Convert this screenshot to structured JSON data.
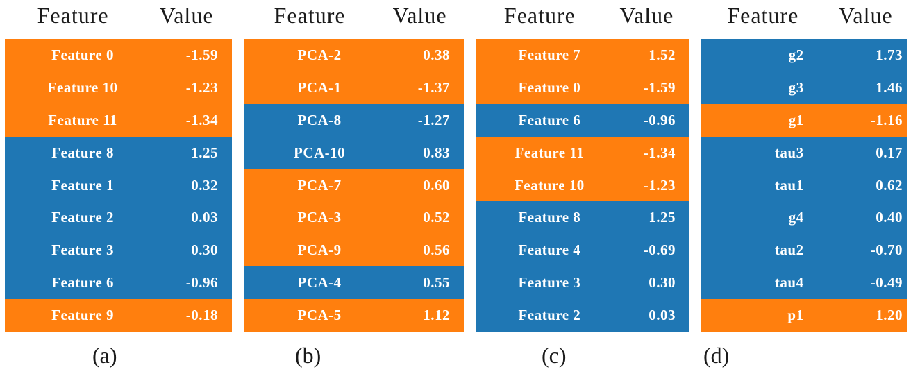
{
  "colors": {
    "row_orange": "#ff7f0e",
    "row_blue": "#1f77b4",
    "header_text": "#1a1a1a",
    "row_text": "#ffffff",
    "background": "#ffffff"
  },
  "chart_data": [
    {
      "type": "table",
      "label": "(a)",
      "columns": [
        "Feature",
        "Value"
      ],
      "rows": [
        {
          "feature": "Feature 0",
          "value": "-1.59",
          "color": "orange"
        },
        {
          "feature": "Feature 10",
          "value": "-1.23",
          "color": "orange"
        },
        {
          "feature": "Feature 11",
          "value": "-1.34",
          "color": "orange"
        },
        {
          "feature": "Feature 8",
          "value": "1.25",
          "color": "blue"
        },
        {
          "feature": "Feature 1",
          "value": "0.32",
          "color": "blue"
        },
        {
          "feature": "Feature 2",
          "value": "0.03",
          "color": "blue"
        },
        {
          "feature": "Feature 3",
          "value": "0.30",
          "color": "blue"
        },
        {
          "feature": "Feature 6",
          "value": "-0.96",
          "color": "blue"
        },
        {
          "feature": "Feature 9",
          "value": "-0.18",
          "color": "orange"
        }
      ]
    },
    {
      "type": "table",
      "label": "(b)",
      "columns": [
        "Feature",
        "Value"
      ],
      "rows": [
        {
          "feature": "PCA-2",
          "value": "0.38",
          "color": "orange"
        },
        {
          "feature": "PCA-1",
          "value": "-1.37",
          "color": "orange"
        },
        {
          "feature": "PCA-8",
          "value": "-1.27",
          "color": "blue"
        },
        {
          "feature": "PCA-10",
          "value": "0.83",
          "color": "blue"
        },
        {
          "feature": "PCA-7",
          "value": "0.60",
          "color": "orange"
        },
        {
          "feature": "PCA-3",
          "value": "0.52",
          "color": "orange"
        },
        {
          "feature": "PCA-9",
          "value": "0.56",
          "color": "orange"
        },
        {
          "feature": "PCA-4",
          "value": "0.55",
          "color": "blue"
        },
        {
          "feature": "PCA-5",
          "value": "1.12",
          "color": "orange"
        }
      ]
    },
    {
      "type": "table",
      "label": "(c)",
      "columns": [
        "Feature",
        "Value"
      ],
      "rows": [
        {
          "feature": "Feature 7",
          "value": "1.52",
          "color": "orange"
        },
        {
          "feature": "Feature 0",
          "value": "-1.59",
          "color": "orange"
        },
        {
          "feature": "Feature 6",
          "value": "-0.96",
          "color": "blue"
        },
        {
          "feature": "Feature 11",
          "value": "-1.34",
          "color": "orange"
        },
        {
          "feature": "Feature 10",
          "value": "-1.23",
          "color": "orange"
        },
        {
          "feature": "Feature 8",
          "value": "1.25",
          "color": "blue"
        },
        {
          "feature": "Feature 4",
          "value": "-0.69",
          "color": "blue"
        },
        {
          "feature": "Feature 3",
          "value": "0.30",
          "color": "blue"
        },
        {
          "feature": "Feature 2",
          "value": "0.03",
          "color": "blue"
        }
      ]
    },
    {
      "type": "table",
      "label": "(d)",
      "columns": [
        "Feature",
        "Value"
      ],
      "rows": [
        {
          "feature": "g2",
          "value": "1.73",
          "color": "blue"
        },
        {
          "feature": "g3",
          "value": "1.46",
          "color": "blue"
        },
        {
          "feature": "g1",
          "value": "-1.16",
          "color": "orange"
        },
        {
          "feature": "tau3",
          "value": "0.17",
          "color": "blue"
        },
        {
          "feature": "tau1",
          "value": "0.62",
          "color": "blue"
        },
        {
          "feature": "g4",
          "value": "0.40",
          "color": "blue"
        },
        {
          "feature": "tau2",
          "value": "-0.70",
          "color": "blue"
        },
        {
          "feature": "tau4",
          "value": "-0.49",
          "color": "blue"
        },
        {
          "feature": "p1",
          "value": "1.20",
          "color": "orange"
        }
      ]
    }
  ]
}
